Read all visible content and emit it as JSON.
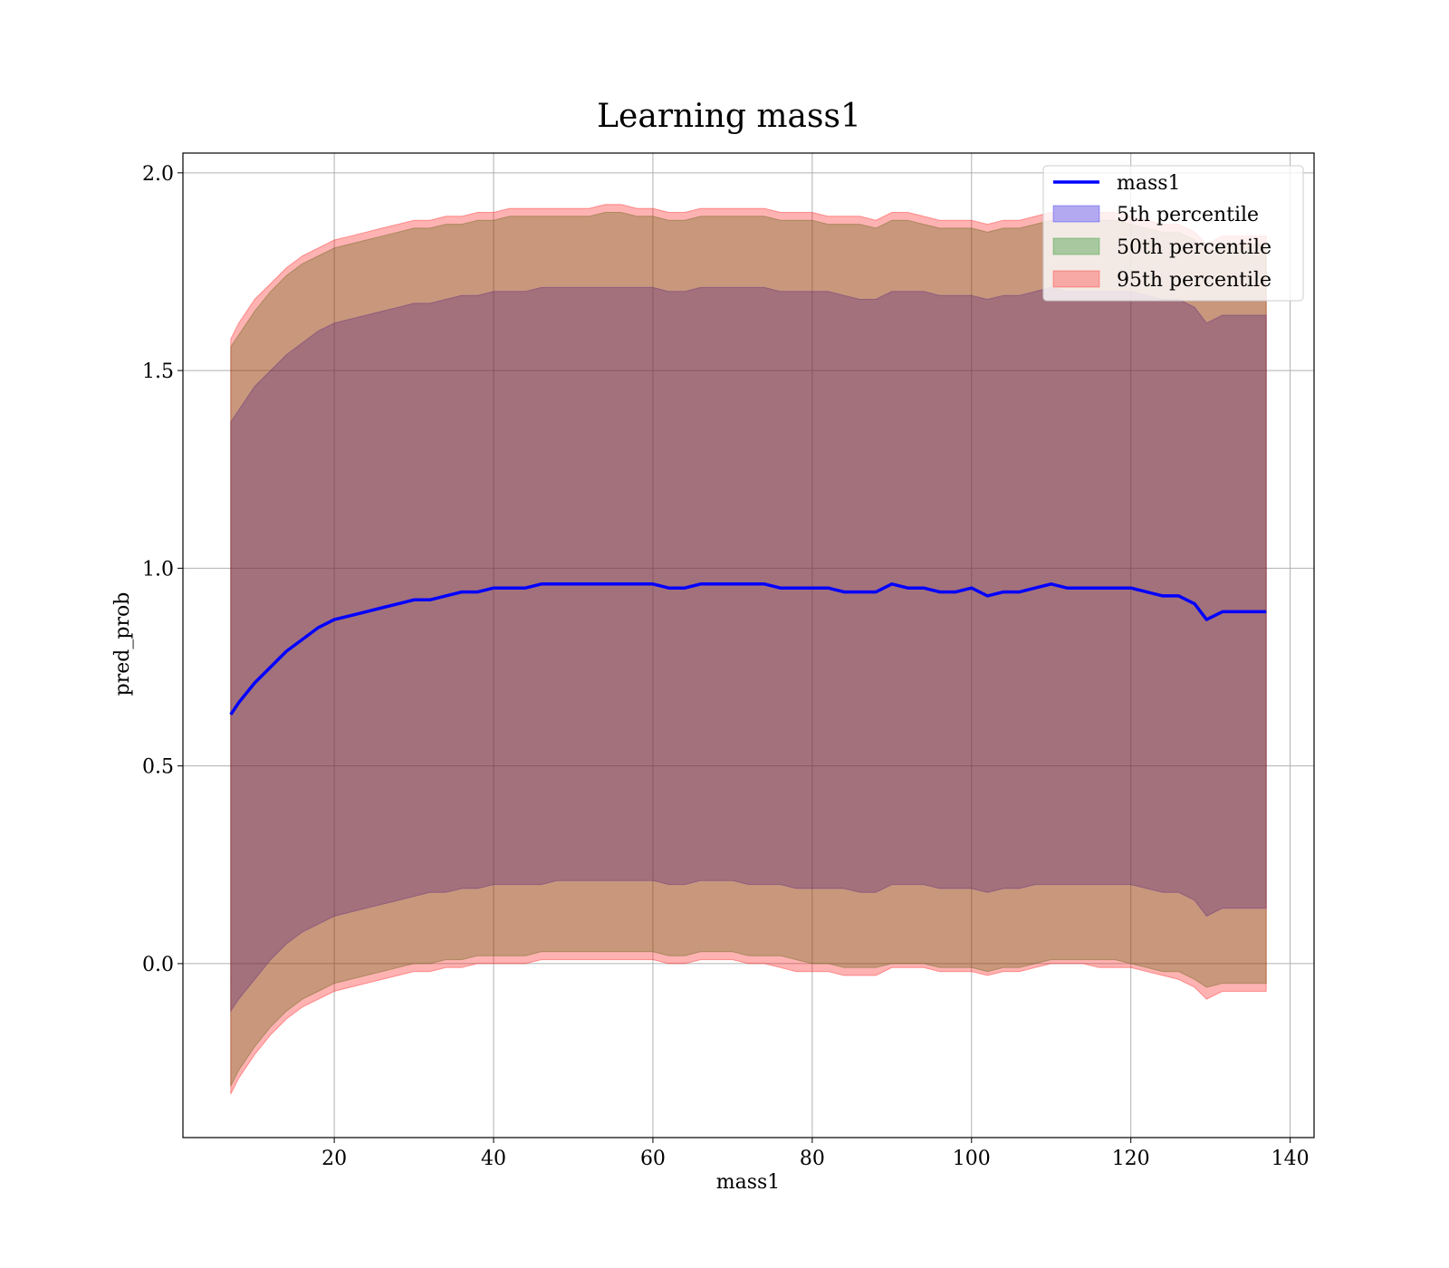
{
  "chart_data": {
    "type": "area",
    "title": "Learning mass1",
    "xlabel": "mass1",
    "ylabel": "pred_prob",
    "xlim": [
      1,
      143
    ],
    "ylim": [
      -0.44,
      2.05
    ],
    "xticks": [
      20,
      40,
      60,
      80,
      100,
      120,
      140
    ],
    "yticks": [
      0.0,
      0.5,
      1.0,
      1.5,
      2.0
    ],
    "xtick_labels": [
      "20",
      "40",
      "60",
      "80",
      "100",
      "120",
      "140"
    ],
    "ytick_labels": [
      "0.0",
      "0.5",
      "1.0",
      "1.5",
      "2.0"
    ],
    "grid": true,
    "legend_position": "upper right",
    "colors": {
      "line": "#0000ff",
      "p5": "#0000ff",
      "p50": "#008000",
      "p95": "#ff0000",
      "legend_p5": "#b3a9f0",
      "legend_p50": "#a8c9a0",
      "legend_p95": "#f7a9a5"
    },
    "legend": [
      {
        "label": "mass1",
        "kind": "line"
      },
      {
        "label": "5th percentile",
        "kind": "patch"
      },
      {
        "label": "50th percentile",
        "kind": "patch"
      },
      {
        "label": "95th percentile",
        "kind": "patch"
      }
    ],
    "x": [
      7,
      8,
      10,
      12,
      14,
      16,
      18,
      20,
      22,
      24,
      26,
      28,
      30,
      32,
      34,
      36,
      38,
      40,
      42,
      44,
      46,
      48,
      50,
      52,
      54,
      56,
      58,
      60,
      62,
      64,
      66,
      68,
      70,
      72,
      74,
      76,
      78,
      80,
      82,
      84,
      86,
      88,
      90,
      92,
      94,
      96,
      98,
      100,
      102,
      104,
      106,
      108,
      110,
      112,
      114,
      116,
      118,
      120,
      122,
      124,
      126,
      128,
      129.5,
      131.5,
      134,
      137
    ],
    "series": [
      {
        "name": "mass1",
        "values": [
          0.63,
          0.66,
          0.71,
          0.75,
          0.79,
          0.82,
          0.85,
          0.87,
          0.88,
          0.89,
          0.9,
          0.91,
          0.92,
          0.92,
          0.93,
          0.94,
          0.94,
          0.95,
          0.95,
          0.95,
          0.96,
          0.96,
          0.96,
          0.96,
          0.96,
          0.96,
          0.96,
          0.96,
          0.95,
          0.95,
          0.96,
          0.96,
          0.96,
          0.96,
          0.96,
          0.95,
          0.95,
          0.95,
          0.95,
          0.94,
          0.94,
          0.94,
          0.96,
          0.95,
          0.95,
          0.94,
          0.94,
          0.95,
          0.93,
          0.94,
          0.94,
          0.95,
          0.96,
          0.95,
          0.95,
          0.95,
          0.95,
          0.95,
          0.94,
          0.93,
          0.93,
          0.91,
          0.87,
          0.89,
          0.89,
          0.89
        ]
      },
      {
        "name": "5th percentile",
        "lower": [
          -0.12,
          -0.09,
          -0.04,
          0.01,
          0.05,
          0.08,
          0.1,
          0.12,
          0.13,
          0.14,
          0.15,
          0.16,
          0.17,
          0.18,
          0.18,
          0.19,
          0.19,
          0.2,
          0.2,
          0.2,
          0.2,
          0.21,
          0.21,
          0.21,
          0.21,
          0.21,
          0.21,
          0.21,
          0.2,
          0.2,
          0.21,
          0.21,
          0.21,
          0.2,
          0.2,
          0.2,
          0.19,
          0.19,
          0.19,
          0.19,
          0.18,
          0.18,
          0.2,
          0.2,
          0.2,
          0.19,
          0.19,
          0.19,
          0.18,
          0.19,
          0.19,
          0.2,
          0.2,
          0.2,
          0.2,
          0.2,
          0.2,
          0.2,
          0.19,
          0.18,
          0.18,
          0.16,
          0.12,
          0.14,
          0.14,
          0.14
        ],
        "upper": [
          1.37,
          1.4,
          1.46,
          1.5,
          1.54,
          1.57,
          1.6,
          1.62,
          1.63,
          1.64,
          1.65,
          1.66,
          1.67,
          1.67,
          1.68,
          1.69,
          1.69,
          1.7,
          1.7,
          1.7,
          1.71,
          1.71,
          1.71,
          1.71,
          1.71,
          1.71,
          1.71,
          1.71,
          1.7,
          1.7,
          1.71,
          1.71,
          1.71,
          1.71,
          1.71,
          1.7,
          1.7,
          1.7,
          1.7,
          1.69,
          1.68,
          1.68,
          1.7,
          1.7,
          1.7,
          1.69,
          1.69,
          1.69,
          1.68,
          1.69,
          1.69,
          1.7,
          1.71,
          1.7,
          1.7,
          1.7,
          1.7,
          1.7,
          1.69,
          1.68,
          1.68,
          1.66,
          1.62,
          1.64,
          1.64,
          1.64
        ]
      },
      {
        "name": "50th percentile",
        "lower": [
          -0.31,
          -0.27,
          -0.21,
          -0.16,
          -0.12,
          -0.09,
          -0.07,
          -0.05,
          -0.04,
          -0.03,
          -0.02,
          -0.01,
          0.0,
          0.0,
          0.01,
          0.01,
          0.02,
          0.02,
          0.02,
          0.02,
          0.03,
          0.03,
          0.03,
          0.03,
          0.03,
          0.03,
          0.03,
          0.03,
          0.02,
          0.02,
          0.03,
          0.03,
          0.03,
          0.02,
          0.02,
          0.02,
          0.01,
          0.0,
          0.0,
          -0.01,
          -0.01,
          -0.01,
          0.0,
          0.0,
          0.0,
          -0.01,
          -0.01,
          -0.01,
          -0.02,
          -0.01,
          -0.01,
          0.0,
          0.01,
          0.01,
          0.01,
          0.01,
          0.01,
          0.0,
          -0.01,
          -0.02,
          -0.02,
          -0.04,
          -0.06,
          -0.05,
          -0.05,
          -0.05
        ],
        "upper": [
          1.56,
          1.59,
          1.65,
          1.7,
          1.74,
          1.77,
          1.79,
          1.81,
          1.82,
          1.83,
          1.84,
          1.85,
          1.86,
          1.86,
          1.87,
          1.87,
          1.88,
          1.88,
          1.89,
          1.89,
          1.89,
          1.89,
          1.89,
          1.89,
          1.9,
          1.9,
          1.89,
          1.89,
          1.88,
          1.88,
          1.89,
          1.89,
          1.89,
          1.89,
          1.89,
          1.88,
          1.88,
          1.88,
          1.87,
          1.87,
          1.87,
          1.86,
          1.88,
          1.88,
          1.87,
          1.86,
          1.86,
          1.86,
          1.85,
          1.86,
          1.86,
          1.87,
          1.88,
          1.88,
          1.88,
          1.88,
          1.88,
          1.87,
          1.86,
          1.85,
          1.85,
          1.83,
          1.8,
          1.82,
          1.82,
          1.82
        ]
      },
      {
        "name": "95th percentile",
        "lower": [
          -0.33,
          -0.29,
          -0.23,
          -0.18,
          -0.14,
          -0.11,
          -0.09,
          -0.07,
          -0.06,
          -0.05,
          -0.04,
          -0.03,
          -0.02,
          -0.02,
          -0.01,
          -0.01,
          0.0,
          0.0,
          0.0,
          0.0,
          0.01,
          0.01,
          0.01,
          0.01,
          0.01,
          0.01,
          0.01,
          0.01,
          0.0,
          0.0,
          0.01,
          0.01,
          0.01,
          0.0,
          0.0,
          -0.01,
          -0.02,
          -0.02,
          -0.02,
          -0.03,
          -0.03,
          -0.03,
          -0.01,
          -0.01,
          -0.01,
          -0.02,
          -0.02,
          -0.02,
          -0.03,
          -0.02,
          -0.02,
          -0.01,
          0.0,
          0.0,
          0.0,
          -0.01,
          -0.01,
          -0.01,
          -0.02,
          -0.03,
          -0.04,
          -0.06,
          -0.09,
          -0.07,
          -0.07,
          -0.07
        ],
        "upper": [
          1.58,
          1.62,
          1.68,
          1.72,
          1.76,
          1.79,
          1.81,
          1.83,
          1.84,
          1.85,
          1.86,
          1.87,
          1.88,
          1.88,
          1.89,
          1.89,
          1.9,
          1.9,
          1.91,
          1.91,
          1.91,
          1.91,
          1.91,
          1.91,
          1.92,
          1.92,
          1.91,
          1.91,
          1.9,
          1.9,
          1.91,
          1.91,
          1.91,
          1.91,
          1.91,
          1.9,
          1.9,
          1.9,
          1.89,
          1.89,
          1.89,
          1.88,
          1.9,
          1.9,
          1.89,
          1.88,
          1.88,
          1.88,
          1.87,
          1.88,
          1.88,
          1.89,
          1.9,
          1.9,
          1.9,
          1.9,
          1.9,
          1.89,
          1.88,
          1.87,
          1.87,
          1.85,
          1.82,
          1.84,
          1.84,
          1.84
        ]
      }
    ]
  }
}
